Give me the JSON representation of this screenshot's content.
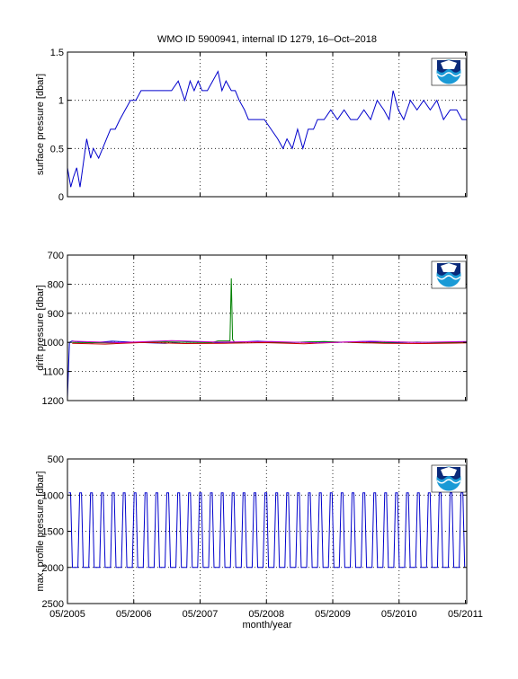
{
  "figure": {
    "title": "WMO ID 5900941, internal ID 1279, 16–Oct–2018",
    "xlabel": "month/year",
    "x_tick_labels": [
      "05/2005",
      "05/2006",
      "05/2007",
      "05/2008",
      "05/2009",
      "05/2010",
      "05/2011"
    ],
    "logo_icon": "noaa-logo-icon",
    "colors": {
      "series_blue": "#0000cc",
      "series_green": "#008000",
      "series_red": "#cc0000",
      "series_magenta": "#cc00cc",
      "series_cyan": "#00aaaa"
    }
  },
  "chart_data": [
    {
      "type": "line",
      "ylabel": "surface pressure [dbar]",
      "ylim": [
        0,
        1.5
      ],
      "y_ticks": [
        0,
        0.5,
        1,
        1.5
      ],
      "y_tick_labels": [
        "0",
        "0.5",
        "1",
        "1.5"
      ],
      "xlim": [
        2005.33,
        2011.35
      ],
      "grid": "dotted",
      "series": [
        {
          "color": "#0000cc",
          "x": [
            2005.33,
            2005.38,
            2005.42,
            2005.47,
            2005.52,
            2005.56,
            2005.62,
            2005.68,
            2005.72,
            2005.8,
            2005.86,
            2005.92,
            2005.98,
            2006.05,
            2006.12,
            2006.2,
            2006.28,
            2006.36,
            2006.44,
            2006.52,
            2006.6,
            2006.7,
            2006.8,
            2006.9,
            2007.0,
            2007.1,
            2007.18,
            2007.24,
            2007.3,
            2007.36,
            2007.44,
            2007.52,
            2007.6,
            2007.66,
            2007.72,
            2007.8,
            2007.86,
            2007.92,
            2008.0,
            2008.06,
            2008.12,
            2008.2,
            2008.3,
            2008.4,
            2008.5,
            2008.58,
            2008.64,
            2008.72,
            2008.8,
            2008.88,
            2008.96,
            2009.04,
            2009.1,
            2009.2,
            2009.3,
            2009.4,
            2009.5,
            2009.6,
            2009.7,
            2009.8,
            2009.9,
            2010.0,
            2010.1,
            2010.18,
            2010.24,
            2010.32,
            2010.4,
            2010.5,
            2010.6,
            2010.7,
            2010.8,
            2010.9,
            2011.0,
            2011.1,
            2011.2,
            2011.28,
            2011.35
          ],
          "y": [
            0.3,
            0.1,
            0.2,
            0.3,
            0.1,
            0.3,
            0.6,
            0.4,
            0.5,
            0.4,
            0.5,
            0.6,
            0.7,
            0.7,
            0.8,
            0.9,
            1.0,
            1.0,
            1.1,
            1.1,
            1.1,
            1.1,
            1.1,
            1.1,
            1.2,
            1.0,
            1.2,
            1.1,
            1.2,
            1.1,
            1.1,
            1.2,
            1.3,
            1.1,
            1.2,
            1.1,
            1.1,
            1.0,
            0.9,
            0.8,
            0.8,
            0.8,
            0.8,
            0.7,
            0.6,
            0.5,
            0.6,
            0.5,
            0.7,
            0.5,
            0.7,
            0.7,
            0.8,
            0.8,
            0.9,
            0.8,
            0.9,
            0.8,
            0.8,
            0.9,
            0.8,
            1.0,
            0.9,
            0.8,
            1.1,
            0.9,
            0.8,
            1.0,
            0.9,
            1.0,
            0.9,
            1.0,
            0.8,
            0.9,
            0.9,
            0.8,
            0.8
          ]
        }
      ]
    },
    {
      "type": "line",
      "ylabel": "drift pressure [dbar]",
      "ylim": [
        700,
        1200
      ],
      "y_reversed": true,
      "y_ticks": [
        700,
        800,
        900,
        1000,
        1100,
        1200
      ],
      "y_tick_labels": [
        "700",
        "800",
        "900",
        "1000",
        "1100",
        "1200"
      ],
      "xlim": [
        2005.33,
        2011.35
      ],
      "grid": "dotted",
      "series": [
        {
          "color": "#0000cc",
          "x": [
            2005.33,
            2005.36,
            2005.4,
            2005.5,
            2005.7,
            2006.0,
            2006.4,
            2006.8,
            2007.2,
            2007.6,
            2007.9,
            2008.2,
            2008.6,
            2009.0,
            2009.4,
            2009.8,
            2010.2,
            2010.6,
            2011.0,
            2011.35
          ],
          "y": [
            1190,
            1000,
            995,
            998,
            1002,
            996,
            1000,
            1003,
            997,
            1001,
            999,
            996,
            1001,
            998,
            1000,
            997,
            1002,
            999,
            1001,
            998
          ]
        },
        {
          "color": "#008000",
          "x": [
            2005.4,
            2006.0,
            2006.8,
            2007.5,
            2007.6,
            2007.78,
            2007.8,
            2007.82,
            2007.86,
            2008.0,
            2008.6,
            2009.2,
            2009.8,
            2010.4,
            2011.0,
            2011.35
          ],
          "y": [
            1000,
            1002,
            998,
            1001,
            995,
            995,
            780,
            990,
            1002,
            998,
            1001,
            997,
            1002,
            999,
            1001,
            1000
          ]
        },
        {
          "color": "#cc0000",
          "x": [
            2005.4,
            2005.9,
            2006.5,
            2007.1,
            2007.7,
            2008.3,
            2008.9,
            2009.5,
            2010.1,
            2010.7,
            2011.35
          ],
          "y": [
            1003,
            1006,
            1000,
            1004,
            1003,
            1001,
            1005,
            999,
            1003,
            1004,
            1002
          ]
        },
        {
          "color": "#cc00cc",
          "x": [
            2005.4,
            2006.1,
            2006.9,
            2007.6,
            2008.4,
            2009.1,
            2009.9,
            2010.6,
            2011.35
          ],
          "y": [
            996,
            1001,
            994,
            999,
            997,
            1002,
            996,
            1000,
            997
          ]
        }
      ]
    },
    {
      "type": "line",
      "ylabel": "max. profile pressure [dbar]",
      "ylim": [
        500,
        2500
      ],
      "y_reversed": true,
      "y_ticks": [
        500,
        1000,
        1500,
        2000,
        2500
      ],
      "y_tick_labels": [
        "500",
        "1000",
        "1500",
        "2000",
        "2500"
      ],
      "xlim": [
        2005.33,
        2011.35
      ],
      "grid": "dotted",
      "series": [
        {
          "color": "#0000cc",
          "pattern": "alternating profile depths",
          "x_start": 2005.35,
          "x_end": 2011.33,
          "cycle_days": 10,
          "values": [
            970,
            2000
          ]
        }
      ]
    }
  ]
}
